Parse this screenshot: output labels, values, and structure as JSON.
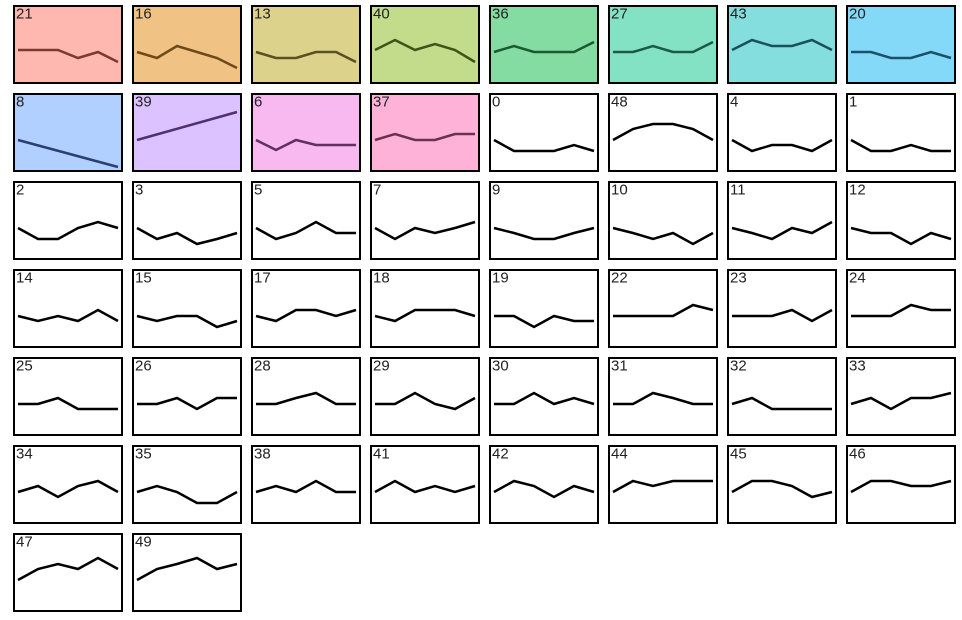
{
  "tiles": [
    {
      "label": "21",
      "color": "#ffb8b0",
      "line_color": "#7a3a33",
      "values": [
        33,
        33,
        33,
        25,
        31,
        21
      ]
    },
    {
      "label": "16",
      "color": "#f0c284",
      "line_color": "#6e4a1a",
      "values": [
        31,
        25,
        37,
        31,
        25,
        15
      ]
    },
    {
      "label": "13",
      "color": "#dcd28c",
      "line_color": "#5a5020",
      "values": [
        31,
        25,
        25,
        31,
        31,
        21
      ]
    },
    {
      "label": "40",
      "color": "#c2dc8c",
      "line_color": "#3e5518",
      "values": [
        33,
        43,
        33,
        39,
        33,
        21
      ]
    },
    {
      "label": "36",
      "color": "#84dca2",
      "line_color": "#1a5a30",
      "values": [
        31,
        37,
        31,
        31,
        31,
        41
      ]
    },
    {
      "label": "27",
      "color": "#84e2c4",
      "line_color": "#1a5a48",
      "values": [
        31,
        31,
        37,
        31,
        31,
        41
      ]
    },
    {
      "label": "43",
      "color": "#84dede",
      "line_color": "#1a5058",
      "values": [
        33,
        43,
        37,
        37,
        43,
        33
      ]
    },
    {
      "label": "20",
      "color": "#84d8f8",
      "line_color": "#1a5068",
      "values": [
        31,
        31,
        25,
        25,
        31,
        25
      ]
    },
    {
      "label": "8",
      "color": "#b2d0ff",
      "line_color": "#2a4070",
      "values": [
        31,
        4
      ]
    },
    {
      "label": "39",
      "color": "#dcc2ff",
      "line_color": "#503070",
      "values": [
        31,
        59
      ]
    },
    {
      "label": "6",
      "color": "#f8b8f0",
      "line_color": "#603060",
      "values": [
        31,
        21,
        31,
        26,
        26,
        26
      ]
    },
    {
      "label": "37",
      "color": "#ffb2d8",
      "line_color": "#6a3050",
      "values": [
        31,
        37,
        31,
        31,
        37,
        37
      ]
    },
    {
      "label": "0",
      "values": [
        31,
        20,
        20,
        20,
        26,
        20
      ]
    },
    {
      "label": "48",
      "values": [
        31,
        42,
        47,
        47,
        42,
        31
      ]
    },
    {
      "label": "4",
      "values": [
        31,
        20,
        26,
        26,
        20,
        31
      ]
    },
    {
      "label": "1",
      "values": [
        31,
        20,
        20,
        26,
        20,
        20
      ]
    },
    {
      "label": "2",
      "values": [
        31,
        20,
        20,
        31,
        37,
        31
      ]
    },
    {
      "label": "3",
      "values": [
        31,
        20,
        26,
        15,
        20,
        26
      ]
    },
    {
      "label": "5",
      "values": [
        31,
        20,
        26,
        37,
        26,
        26
      ]
    },
    {
      "label": "7",
      "values": [
        31,
        20,
        31,
        26,
        31,
        37
      ]
    },
    {
      "label": "9",
      "values": [
        31,
        26,
        20,
        20,
        26,
        31
      ]
    },
    {
      "label": "10",
      "values": [
        31,
        26,
        20,
        26,
        15,
        26
      ]
    },
    {
      "label": "11",
      "values": [
        31,
        26,
        20,
        31,
        26,
        37
      ]
    },
    {
      "label": "12",
      "values": [
        31,
        26,
        26,
        15,
        26,
        20
      ]
    },
    {
      "label": "14",
      "values": [
        31,
        26,
        31,
        26,
        37,
        26
      ]
    },
    {
      "label": "15",
      "values": [
        31,
        26,
        31,
        31,
        20,
        26
      ]
    },
    {
      "label": "17",
      "values": [
        31,
        26,
        37,
        37,
        31,
        37
      ]
    },
    {
      "label": "18",
      "values": [
        31,
        26,
        37,
        37,
        37,
        31
      ]
    },
    {
      "label": "19",
      "values": [
        31,
        31,
        20,
        31,
        26,
        26
      ]
    },
    {
      "label": "22",
      "values": [
        31,
        31,
        31,
        31,
        42,
        37
      ]
    },
    {
      "label": "23",
      "values": [
        31,
        31,
        31,
        37,
        26,
        37
      ]
    },
    {
      "label": "24",
      "values": [
        31,
        31,
        31,
        42,
        37,
        37
      ]
    },
    {
      "label": "25",
      "values": [
        31,
        31,
        37,
        26,
        26,
        26
      ]
    },
    {
      "label": "26",
      "values": [
        31,
        31,
        37,
        26,
        37,
        37
      ]
    },
    {
      "label": "28",
      "values": [
        31,
        31,
        37,
        42,
        31,
        31
      ]
    },
    {
      "label": "29",
      "values": [
        31,
        31,
        42,
        31,
        26,
        37
      ]
    },
    {
      "label": "30",
      "values": [
        31,
        31,
        42,
        31,
        37,
        31
      ]
    },
    {
      "label": "31",
      "values": [
        31,
        31,
        42,
        37,
        31,
        31
      ]
    },
    {
      "label": "32",
      "values": [
        31,
        37,
        26,
        26,
        26,
        26
      ]
    },
    {
      "label": "33",
      "values": [
        31,
        37,
        26,
        37,
        37,
        42
      ]
    },
    {
      "label": "34",
      "values": [
        31,
        37,
        26,
        37,
        42,
        31
      ]
    },
    {
      "label": "35",
      "values": [
        31,
        37,
        31,
        20,
        20,
        31
      ]
    },
    {
      "label": "38",
      "values": [
        31,
        37,
        31,
        42,
        31,
        31
      ]
    },
    {
      "label": "41",
      "values": [
        31,
        42,
        31,
        37,
        31,
        37
      ]
    },
    {
      "label": "42",
      "values": [
        31,
        42,
        37,
        26,
        37,
        31
      ]
    },
    {
      "label": "44",
      "values": [
        31,
        42,
        37,
        42,
        42,
        42
      ]
    },
    {
      "label": "45",
      "values": [
        31,
        42,
        42,
        37,
        26,
        31
      ]
    },
    {
      "label": "46",
      "values": [
        31,
        42,
        42,
        37,
        37,
        42
      ]
    },
    {
      "label": "47",
      "values": [
        31,
        42,
        47,
        42,
        53,
        42
      ]
    },
    {
      "label": "49",
      "values": [
        31,
        42,
        47,
        53,
        42,
        47
      ]
    }
  ]
}
